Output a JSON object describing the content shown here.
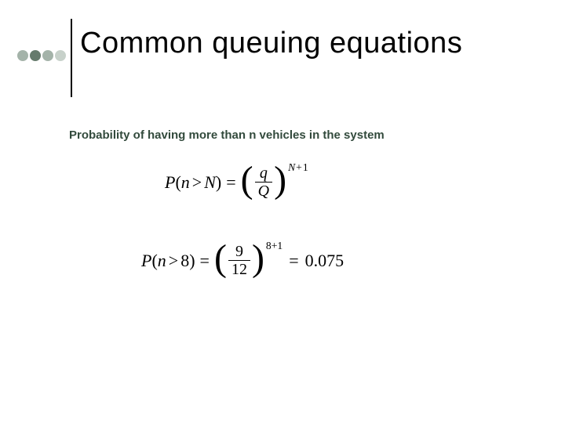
{
  "header": {
    "title": "Common queuing equations",
    "title_fontsize": 38,
    "title_color": "#000000",
    "dot_colors": [
      "#a4b3a9",
      "#657a6c",
      "#a4b3a9",
      "#c7d1ca"
    ],
    "divider_color": "#000000"
  },
  "subtitle": {
    "text": "Probability of having more than n vehicles in the system",
    "fontsize": 15,
    "color": "#324a3c"
  },
  "equation1": {
    "lhs_P": "P",
    "lhs_open": "(",
    "lhs_var": "n",
    "lhs_gt": ">",
    "lhs_N": "N",
    "lhs_close": ")",
    "eq": "=",
    "frac_num": "q",
    "frac_den": "Q",
    "exp_N": "N",
    "exp_plus": "+",
    "exp_one": "1"
  },
  "equation2": {
    "lhs_P": "P",
    "lhs_open": "(",
    "lhs_var": "n",
    "lhs_gt": ">",
    "lhs_eight": "8",
    "lhs_close": ")",
    "eq": "=",
    "frac_num": "9",
    "frac_den": "12",
    "exp": "8+1",
    "eq2": "=",
    "result": "0.075"
  },
  "colors": {
    "background": "#ffffff",
    "text": "#000000"
  }
}
